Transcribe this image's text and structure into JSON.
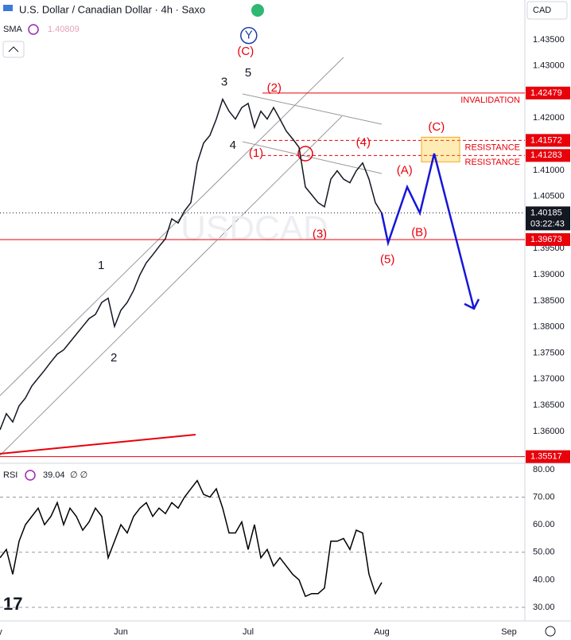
{
  "chart_data": {
    "type": "line",
    "title": "U.S. Dollar / Canadian Dollar · 4h · Saxo",
    "currency": "CAD",
    "sma": {
      "name": "SMA",
      "value": 1.40809
    },
    "rsi_settings": "∅ ∅",
    "categories": [
      "y",
      null,
      null,
      null,
      null,
      null,
      null,
      null,
      null,
      null,
      null,
      null,
      null,
      null,
      null,
      null,
      null,
      null,
      null,
      "Jun",
      null,
      null,
      null,
      null,
      null,
      null,
      null,
      null,
      null,
      null,
      null,
      null,
      null,
      null,
      null,
      null,
      null,
      null,
      null,
      "Jul",
      null,
      null,
      null,
      null,
      null,
      null,
      null,
      null,
      null,
      null,
      null,
      null,
      null,
      null,
      null,
      null,
      null,
      null,
      null,
      null,
      "Aug",
      null,
      null,
      null,
      null,
      null,
      null,
      null,
      null,
      null,
      null,
      null,
      null,
      null,
      null,
      null,
      null,
      null,
      null,
      null,
      "Sep",
      null,
      null
    ],
    "series": [
      {
        "name": "USDCAD",
        "color": "#131722",
        "axis": "y",
        "values": [
          1.3603,
          1.3634,
          1.3618,
          1.3649,
          1.3664,
          1.3687,
          1.3702,
          1.3717,
          1.3733,
          1.3748,
          1.3756,
          1.3771,
          1.3786,
          1.3801,
          1.3816,
          1.3824,
          1.3847,
          1.3855,
          1.3801,
          1.3832,
          1.3847,
          1.387,
          1.39,
          1.3923,
          1.3938,
          1.3954,
          1.3969,
          1.4007,
          1.3999,
          1.4022,
          1.4038,
          1.4114,
          1.4152,
          1.4167,
          1.4198,
          1.4236,
          1.4213,
          1.4198,
          1.422,
          1.4228,
          1.4182,
          1.4213,
          1.4198,
          1.422,
          1.4198,
          1.4175,
          1.416,
          1.4144,
          1.4068,
          1.4053,
          1.4038,
          1.403,
          1.4083,
          1.4099,
          1.4083,
          1.4076,
          1.4099,
          1.4114,
          1.4083,
          1.4038,
          1.4018,
          null,
          null,
          null,
          null,
          null,
          null,
          null,
          null,
          null,
          null,
          null,
          null,
          null,
          null,
          null,
          null,
          null,
          null,
          null,
          null,
          null,
          null
        ]
      },
      {
        "name": "RSI",
        "color": "#000000",
        "axis": "y2",
        "values": [
          48,
          51,
          42,
          54,
          60,
          63,
          66,
          60,
          63,
          68,
          60,
          66,
          63,
          58,
          61,
          66,
          63,
          48,
          54,
          60,
          57,
          63,
          66,
          68,
          63,
          66,
          64,
          68,
          66,
          70,
          73,
          76,
          71,
          70,
          73,
          66,
          57,
          57,
          61,
          51,
          60,
          48,
          51,
          45,
          48,
          45,
          42,
          40,
          34,
          35,
          35,
          37,
          54,
          54,
          55,
          51,
          58,
          57,
          42,
          35,
          39.04,
          null,
          null,
          null,
          null,
          null,
          null,
          null,
          null,
          null,
          null,
          null,
          null,
          null,
          null,
          null,
          null,
          null,
          null,
          null,
          null,
          null,
          null
        ]
      }
    ],
    "ylim": [
      1.3542,
      1.4426
    ],
    "yticks": [
      {
        "value": 1.36,
        "label": "1.36000"
      },
      {
        "value": 1.365,
        "label": "1.36500"
      },
      {
        "value": 1.37,
        "label": "1.37000"
      },
      {
        "value": 1.375,
        "label": "1.37500"
      },
      {
        "value": 1.38,
        "label": "1.38000"
      },
      {
        "value": 1.385,
        "label": "1.38500"
      },
      {
        "value": 1.39,
        "label": "1.39000"
      },
      {
        "value": 1.395,
        "label": "1.39500"
      },
      {
        "value": 1.4,
        "label": "1.40000"
      },
      {
        "value": 1.405,
        "label": "1.40500"
      },
      {
        "value": 1.41,
        "label": "1.41000"
      },
      {
        "value": 1.415,
        "label": "1.41500"
      },
      {
        "value": 1.42,
        "label": "1.42000"
      },
      {
        "value": 1.425,
        "label": "1.42500"
      },
      {
        "value": 1.43,
        "label": "1.43000"
      },
      {
        "value": 1.435,
        "label": "1.43500"
      }
    ],
    "y2lim": [
      25.1,
      81.4
    ],
    "y2ticks": [
      {
        "value": 80,
        "label": "80.00"
      },
      {
        "value": 70,
        "label": "70.00"
      },
      {
        "value": 60,
        "label": "60.00"
      },
      {
        "value": 50,
        "label": "50.00"
      },
      {
        "value": 40,
        "label": "40.00"
      },
      {
        "value": 30,
        "label": "30.00"
      }
    ],
    "rsi_bands": [
      70,
      50,
      30
    ],
    "grid": false,
    "levels": [
      {
        "value": 1.42479,
        "name": "INVALIDATION",
        "color": "#e8000b",
        "style": "solid"
      },
      {
        "value": 1.41572,
        "name": "RESISTANCE",
        "color": "#e8000b",
        "style": "dashed"
      },
      {
        "value": 1.41283,
        "name": "RESISTANCE",
        "color": "#e8000b",
        "style": "dashed"
      },
      {
        "value": 1.39673,
        "color": "#e8000b",
        "style": "solid"
      },
      {
        "value": 1.35517,
        "color": "#e8000b",
        "style": "solid"
      }
    ],
    "current_price": {
      "value": 1.40185,
      "countdown": "03:22:43"
    },
    "projection": {
      "color": "#1616d8",
      "x": [
        60,
        61,
        64,
        66,
        68.25,
        74.5
      ],
      "y": [
        1.4018,
        1.3961,
        1.4068,
        1.4018,
        1.4132,
        1.3835
      ]
    },
    "annotations": [
      {
        "text": "Y",
        "x": 39.1,
        "y": 1.4358,
        "color": "#1e3fa8",
        "circled": true
      },
      {
        "text": "(C)",
        "x": 38.6,
        "y": 1.4327,
        "color": "#e8000b"
      },
      {
        "text": "3",
        "x": 35.25,
        "y": 1.4268,
        "color": "#131722"
      },
      {
        "text": "5",
        "x": 39,
        "y": 1.4286,
        "color": "#131722"
      },
      {
        "text": "(2)",
        "x": 43.1,
        "y": 1.4257,
        "color": "#e8000b"
      },
      {
        "text": "(1)",
        "x": 40.25,
        "y": 1.4132,
        "color": "#e8000b"
      },
      {
        "text": "4",
        "x": 36.6,
        "y": 1.4147,
        "color": "#131722"
      },
      {
        "text": "(4)",
        "x": 57.1,
        "y": 1.4152,
        "color": "#e8000b"
      },
      {
        "text": "(3)",
        "x": 50.25,
        "y": 1.3977,
        "color": "#e8000b"
      },
      {
        "text": "(5)",
        "x": 60.9,
        "y": 1.3928,
        "color": "#e8000b"
      },
      {
        "text": "(A)",
        "x": 63.6,
        "y": 1.4099,
        "color": "#e8000b"
      },
      {
        "text": "(B)",
        "x": 65.9,
        "y": 1.398,
        "color": "#e8000b"
      },
      {
        "text": "(C)",
        "x": 68.6,
        "y": 1.4182,
        "color": "#e8000b"
      },
      {
        "text": "1",
        "x": 15.9,
        "y": 1.3917,
        "color": "#131722"
      },
      {
        "text": "2",
        "x": 17.9,
        "y": 1.374,
        "color": "#131722"
      }
    ]
  }
}
